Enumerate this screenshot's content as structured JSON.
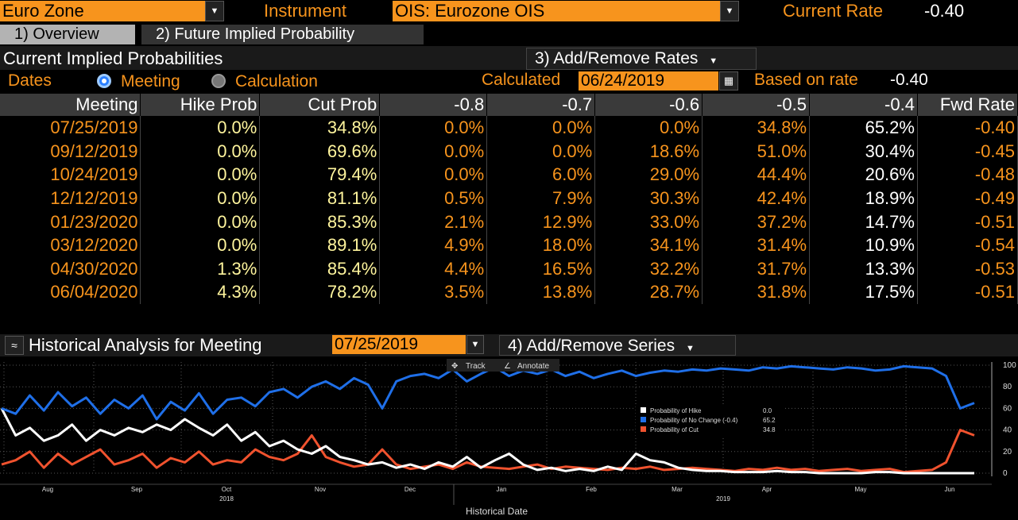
{
  "header": {
    "region_value": "Euro Zone",
    "instrument_label": "Instrument",
    "instrument_value": "OIS: Eurozone OIS",
    "current_rate_label": "Current Rate",
    "current_rate_value": "-0.40"
  },
  "tabs": [
    {
      "label": "1) Overview"
    },
    {
      "label": "2) Future Implied Probability"
    }
  ],
  "section": {
    "title": "Current Implied Probabilities",
    "add_remove_rates": "3) Add/Remove Rates"
  },
  "dates_row": {
    "dates_label": "Dates",
    "meeting_label": "Meeting",
    "calculation_label": "Calculation",
    "calculated_label": "Calculated",
    "calculated_value": "06/24/2019",
    "based_on_label": "Based on rate",
    "based_on_value": "-0.40"
  },
  "table": {
    "headers": [
      "Meeting",
      "Hike Prob",
      "Cut Prob",
      "-0.8",
      "-0.7",
      "-0.6",
      "-0.5",
      "-0.4",
      "Fwd Rate"
    ],
    "rows": [
      [
        "07/25/2019",
        "0.0%",
        "34.8%",
        "0.0%",
        "0.0%",
        "0.0%",
        "34.8%",
        "65.2%",
        "-0.40"
      ],
      [
        "09/12/2019",
        "0.0%",
        "69.6%",
        "0.0%",
        "0.0%",
        "18.6%",
        "51.0%",
        "30.4%",
        "-0.45"
      ],
      [
        "10/24/2019",
        "0.0%",
        "79.4%",
        "0.0%",
        "6.0%",
        "29.0%",
        "44.4%",
        "20.6%",
        "-0.48"
      ],
      [
        "12/12/2019",
        "0.0%",
        "81.1%",
        "0.5%",
        "7.9%",
        "30.3%",
        "42.4%",
        "18.9%",
        "-0.49"
      ],
      [
        "01/23/2020",
        "0.0%",
        "85.3%",
        "2.1%",
        "12.9%",
        "33.0%",
        "37.2%",
        "14.7%",
        "-0.51"
      ],
      [
        "03/12/2020",
        "0.0%",
        "89.1%",
        "4.9%",
        "18.0%",
        "34.1%",
        "31.4%",
        "10.9%",
        "-0.54"
      ],
      [
        "04/30/2020",
        "1.3%",
        "85.4%",
        "4.4%",
        "16.5%",
        "32.2%",
        "31.7%",
        "13.3%",
        "-0.53"
      ],
      [
        "06/04/2020",
        "4.3%",
        "78.2%",
        "3.5%",
        "13.8%",
        "28.7%",
        "31.8%",
        "17.5%",
        "-0.51"
      ]
    ]
  },
  "history": {
    "title": "Historical Analysis for Meeting",
    "meeting_value": "07/25/2019",
    "add_remove_series": "4) Add/Remove Series",
    "track_label": "Track",
    "annotate_label": "Annotate"
  },
  "chart_data": {
    "type": "line",
    "xlabel": "Historical Date",
    "x_ticks": [
      "Aug",
      "Sep",
      "Oct",
      "Nov",
      "Dec",
      "Jan",
      "Feb",
      "Mar",
      "Apr",
      "May",
      "Jun"
    ],
    "year_labels": [
      "2018",
      "2019"
    ],
    "ylim": [
      0,
      100
    ],
    "y_ticks": [
      0,
      20,
      40,
      60,
      80,
      100
    ],
    "grid": true,
    "legend": "center-right",
    "colors": {
      "hike": "#ffffff",
      "no_change": "#1f6fe8",
      "cut": "#f0522e"
    },
    "series": [
      {
        "name": "Probability of Hike",
        "last": "0.0",
        "values": [
          60,
          35,
          42,
          30,
          35,
          45,
          30,
          40,
          35,
          42,
          38,
          45,
          40,
          50,
          42,
          35,
          45,
          30,
          38,
          25,
          30,
          22,
          18,
          25,
          15,
          12,
          8,
          10,
          5,
          8,
          4,
          10,
          6,
          15,
          5,
          12,
          18,
          8,
          3,
          5,
          2,
          4,
          2,
          6,
          3,
          18,
          12,
          10,
          5,
          3,
          2,
          2,
          1,
          1,
          1,
          2,
          1,
          1,
          0,
          0,
          0,
          0,
          1,
          1,
          0,
          0,
          0,
          0,
          0,
          0
        ]
      },
      {
        "name": "Probability of No Change (-0.4)",
        "last": "65.2",
        "values": [
          60,
          55,
          72,
          58,
          75,
          62,
          70,
          55,
          68,
          60,
          72,
          50,
          66,
          58,
          74,
          55,
          68,
          70,
          62,
          75,
          78,
          70,
          80,
          85,
          78,
          88,
          82,
          60,
          85,
          90,
          92,
          88,
          96,
          85,
          92,
          98,
          90,
          95,
          92,
          96,
          90,
          94,
          88,
          92,
          95,
          90,
          93,
          95,
          94,
          96,
          95,
          97,
          96,
          95,
          98,
          97,
          99,
          98,
          97,
          96,
          98,
          97,
          95,
          96,
          99,
          98,
          97,
          90,
          60,
          65
        ]
      },
      {
        "name": "Probability of Cut",
        "last": "34.8",
        "values": [
          8,
          12,
          20,
          5,
          18,
          8,
          15,
          22,
          8,
          12,
          18,
          5,
          14,
          10,
          20,
          8,
          12,
          10,
          22,
          15,
          12,
          18,
          35,
          15,
          10,
          6,
          8,
          22,
          8,
          4,
          6,
          8,
          4,
          10,
          6,
          5,
          4,
          6,
          8,
          4,
          6,
          5,
          4,
          3,
          5,
          4,
          6,
          3,
          4,
          5,
          4,
          3,
          2,
          4,
          3,
          5,
          3,
          4,
          2,
          3,
          4,
          2,
          3,
          4,
          1,
          2,
          3,
          10,
          40,
          35
        ]
      }
    ]
  }
}
